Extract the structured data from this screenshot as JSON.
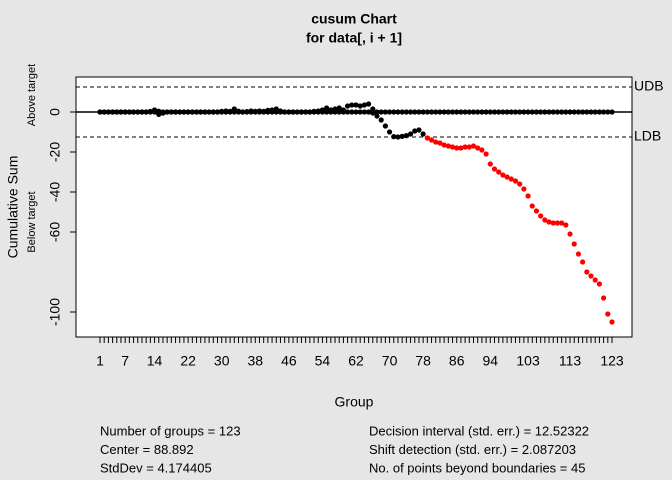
{
  "chart_data": {
    "type": "cusum",
    "title": "cusum Chart",
    "subtitle": "for data[, i + 1]",
    "y_label": "Cumulative Sum",
    "y_label_above": "Above target",
    "y_label_below": "Below target",
    "x_label": "Group",
    "categories": [
      "1",
      null,
      null,
      null,
      null,
      null,
      "7",
      null,
      null,
      null,
      null,
      null,
      null,
      "14",
      null,
      null,
      null,
      null,
      null,
      null,
      null,
      "22",
      null,
      null,
      null,
      null,
      null,
      null,
      null,
      "30",
      null,
      null,
      null,
      null,
      null,
      null,
      null,
      "38",
      null,
      null,
      null,
      null,
      null,
      null,
      null,
      "46",
      null,
      null,
      null,
      null,
      null,
      null,
      null,
      "54",
      null,
      null,
      null,
      null,
      null,
      null,
      null,
      "62",
      null,
      null,
      null,
      null,
      null,
      null,
      null,
      "70",
      null,
      null,
      null,
      null,
      null,
      null,
      null,
      "78",
      null,
      null,
      null,
      null,
      null,
      null,
      null,
      "86",
      null,
      null,
      null,
      null,
      null,
      null,
      null,
      "94",
      null,
      null,
      null,
      null,
      null,
      null,
      null,
      null,
      "103",
      null,
      null,
      null,
      null,
      null,
      null,
      null,
      null,
      null,
      "113",
      null,
      null,
      null,
      null,
      null,
      null,
      null,
      null,
      null,
      "123"
    ],
    "series": [
      {
        "color": "#000000",
        "values": [
          0,
          0,
          0,
          0,
          0,
          0,
          0,
          0,
          0,
          0,
          0,
          0,
          0.3,
          1,
          0.4,
          0,
          0,
          0,
          0,
          0,
          0,
          0,
          0,
          0,
          0,
          0,
          0,
          0,
          0,
          0.3,
          0.5,
          0.3,
          1.5,
          0.4,
          0,
          0.2,
          0.5,
          0.3,
          0.5,
          0.3,
          0.8,
          1,
          1.5,
          0.5,
          0,
          0,
          0,
          0,
          0,
          0,
          0,
          0.3,
          0.5,
          1,
          2,
          1,
          1.5,
          2,
          1,
          3,
          3.5,
          3.5,
          3,
          3.5,
          4,
          1.5,
          0,
          0,
          0,
          0,
          0,
          0,
          0,
          0,
          0,
          0,
          0,
          0,
          0,
          0,
          0,
          0,
          0,
          0,
          0,
          0,
          0,
          0,
          0,
          0,
          0,
          0,
          0,
          0,
          0,
          0,
          0,
          0,
          0,
          0,
          0,
          0,
          0,
          0,
          0,
          0,
          0,
          0,
          0,
          0,
          0,
          0,
          0,
          0,
          0,
          0,
          0,
          0,
          0,
          0,
          0,
          0,
          0
        ]
      },
      {
        "color": "#000000",
        "values": [
          0,
          0,
          0,
          0,
          0,
          0,
          0,
          0,
          0,
          0,
          0,
          0,
          0,
          0,
          -1.2,
          -0.6,
          0,
          0,
          0,
          0,
          0,
          0,
          0,
          0,
          0,
          0,
          0,
          0,
          0,
          0,
          0,
          0,
          0,
          0,
          0,
          0,
          0,
          0,
          0,
          0,
          0,
          0,
          0,
          0,
          0,
          0,
          0,
          0,
          0,
          0,
          0,
          0,
          0,
          0,
          0,
          0,
          0,
          0,
          0,
          0,
          0,
          0,
          0,
          0,
          0,
          -0.5,
          -2,
          -4,
          -7,
          -10,
          -12.3,
          -12.5,
          -12.2,
          -11.8,
          -11,
          -9.5,
          -9,
          -11,
          -13,
          -14,
          -15,
          -15.5,
          -16.5,
          -17,
          -17.5,
          -18,
          -18,
          -17.5,
          -17.5,
          -17,
          -18,
          -19,
          -21,
          -26,
          -28.5,
          -30,
          -31.5,
          -32.5,
          -33.5,
          -34.5,
          -36,
          -38.5,
          -42,
          -47,
          -49.5,
          -52,
          -54,
          -55,
          -55.5,
          -55.5,
          -55.5,
          -56.5,
          -61,
          -66,
          -71,
          -75,
          -80,
          -82,
          -84,
          -86,
          -93,
          -101,
          -105
        ]
      }
    ],
    "beyond_color": "#ff0000",
    "target": 0,
    "boundaries": [
      {
        "label": "UDB",
        "value": 12.52322
      },
      {
        "label": "LDB",
        "value": -12.52322
      }
    ],
    "ylim": [
      -112.5,
      17.5
    ],
    "yticks": [
      -100,
      -60,
      -40,
      -20,
      0
    ],
    "stats_left": [
      "Number of groups = 123",
      "Center = 88.892",
      "StdDev = 4.174405"
    ],
    "stats_right": [
      "Decision interval (std. err.) = 12.52322",
      "Shift detection (std. err.) = 2.087203",
      "No. of points beyond boundaries = 45"
    ]
  }
}
